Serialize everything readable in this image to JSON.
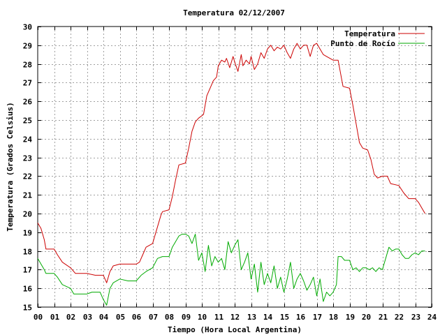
{
  "chart_data": {
    "type": "line",
    "title": "Temperatura 02/12/2007",
    "xlabel": "Tiempo (Hora Local Argentina)",
    "ylabel": "Temperatura (Grados Celsius)",
    "xlim": [
      0,
      24
    ],
    "ylim": [
      15,
      30
    ],
    "xticks": [
      "00",
      "01",
      "02",
      "03",
      "04",
      "05",
      "06",
      "07",
      "08",
      "09",
      "10",
      "11",
      "12",
      "13",
      "14",
      "15",
      "16",
      "17",
      "18",
      "19",
      "20",
      "21",
      "22",
      "23",
      "24"
    ],
    "yticks": [
      15,
      16,
      17,
      18,
      19,
      20,
      21,
      22,
      23,
      24,
      25,
      26,
      27,
      28,
      29,
      30
    ],
    "grid": true,
    "legend_position": "top-right",
    "series": [
      {
        "name": "Temperatura",
        "color": "#cc0000",
        "points": [
          [
            0.0,
            19.5
          ],
          [
            0.2,
            19.2
          ],
          [
            0.4,
            18.6
          ],
          [
            0.5,
            18.1
          ],
          [
            1.0,
            18.1
          ],
          [
            1.2,
            17.8
          ],
          [
            1.5,
            17.4
          ],
          [
            2.0,
            17.1
          ],
          [
            2.3,
            16.8
          ],
          [
            3.0,
            16.8
          ],
          [
            3.5,
            16.7
          ],
          [
            4.0,
            16.7
          ],
          [
            4.2,
            16.3
          ],
          [
            4.4,
            16.9
          ],
          [
            4.6,
            17.2
          ],
          [
            5.0,
            17.3
          ],
          [
            5.5,
            17.3
          ],
          [
            6.0,
            17.3
          ],
          [
            6.2,
            17.4
          ],
          [
            6.4,
            17.8
          ],
          [
            6.6,
            18.2
          ],
          [
            7.0,
            18.4
          ],
          [
            7.2,
            19.0
          ],
          [
            7.5,
            19.9
          ],
          [
            7.6,
            20.1
          ],
          [
            8.0,
            20.2
          ],
          [
            8.2,
            20.9
          ],
          [
            8.4,
            21.8
          ],
          [
            8.6,
            22.6
          ],
          [
            9.0,
            22.7
          ],
          [
            9.2,
            23.5
          ],
          [
            9.4,
            24.4
          ],
          [
            9.6,
            24.9
          ],
          [
            9.8,
            25.1
          ],
          [
            10.1,
            25.3
          ],
          [
            10.3,
            26.3
          ],
          [
            10.5,
            26.7
          ],
          [
            10.7,
            27.1
          ],
          [
            10.9,
            27.3
          ],
          [
            11.0,
            27.9
          ],
          [
            11.2,
            28.2
          ],
          [
            11.4,
            28.1
          ],
          [
            11.5,
            28.3
          ],
          [
            11.7,
            27.8
          ],
          [
            11.9,
            28.4
          ],
          [
            12.0,
            28.1
          ],
          [
            12.2,
            27.6
          ],
          [
            12.4,
            28.5
          ],
          [
            12.5,
            27.9
          ],
          [
            12.7,
            28.2
          ],
          [
            12.9,
            28.0
          ],
          [
            13.0,
            28.4
          ],
          [
            13.2,
            27.7
          ],
          [
            13.4,
            28.0
          ],
          [
            13.6,
            28.6
          ],
          [
            13.8,
            28.3
          ],
          [
            14.0,
            28.8
          ],
          [
            14.2,
            29.0
          ],
          [
            14.4,
            28.7
          ],
          [
            14.6,
            28.9
          ],
          [
            14.8,
            28.8
          ],
          [
            15.0,
            29.0
          ],
          [
            15.2,
            28.6
          ],
          [
            15.4,
            28.3
          ],
          [
            15.6,
            28.8
          ],
          [
            15.8,
            29.1
          ],
          [
            16.0,
            28.8
          ],
          [
            16.2,
            29.0
          ],
          [
            16.4,
            29.0
          ],
          [
            16.6,
            28.4
          ],
          [
            16.8,
            29.0
          ],
          [
            17.0,
            29.1
          ],
          [
            17.2,
            28.8
          ],
          [
            17.4,
            28.5
          ],
          [
            17.6,
            28.4
          ],
          [
            17.8,
            28.3
          ],
          [
            18.0,
            28.2
          ],
          [
            18.3,
            28.2
          ],
          [
            18.6,
            26.8
          ],
          [
            19.0,
            26.7
          ],
          [
            19.2,
            25.8
          ],
          [
            19.4,
            24.8
          ],
          [
            19.6,
            23.8
          ],
          [
            19.8,
            23.5
          ],
          [
            20.1,
            23.4
          ],
          [
            20.3,
            22.9
          ],
          [
            20.5,
            22.1
          ],
          [
            20.7,
            21.9
          ],
          [
            21.0,
            22.0
          ],
          [
            21.3,
            22.0
          ],
          [
            21.5,
            21.6
          ],
          [
            22.0,
            21.5
          ],
          [
            22.3,
            21.1
          ],
          [
            22.6,
            20.8
          ],
          [
            23.0,
            20.8
          ],
          [
            23.2,
            20.6
          ],
          [
            23.4,
            20.3
          ],
          [
            23.6,
            20.0
          ]
        ]
      },
      {
        "name": "Punto de Rocío",
        "color": "#00aa00",
        "points": [
          [
            0.0,
            17.6
          ],
          [
            0.2,
            17.3
          ],
          [
            0.4,
            17.0
          ],
          [
            0.5,
            16.8
          ],
          [
            1.0,
            16.8
          ],
          [
            1.2,
            16.6
          ],
          [
            1.5,
            16.2
          ],
          [
            2.0,
            16.0
          ],
          [
            2.2,
            15.7
          ],
          [
            3.0,
            15.7
          ],
          [
            3.3,
            15.8
          ],
          [
            3.8,
            15.8
          ],
          [
            4.0,
            15.4
          ],
          [
            4.2,
            15.1
          ],
          [
            4.4,
            16.0
          ],
          [
            4.6,
            16.3
          ],
          [
            5.0,
            16.5
          ],
          [
            5.5,
            16.4
          ],
          [
            6.0,
            16.4
          ],
          [
            6.3,
            16.7
          ],
          [
            6.6,
            16.9
          ],
          [
            7.0,
            17.1
          ],
          [
            7.3,
            17.6
          ],
          [
            7.6,
            17.7
          ],
          [
            8.0,
            17.7
          ],
          [
            8.2,
            18.2
          ],
          [
            8.4,
            18.5
          ],
          [
            8.6,
            18.8
          ],
          [
            8.8,
            18.9
          ],
          [
            9.0,
            18.9
          ],
          [
            9.2,
            18.8
          ],
          [
            9.4,
            18.4
          ],
          [
            9.6,
            18.9
          ],
          [
            9.8,
            17.5
          ],
          [
            10.0,
            17.9
          ],
          [
            10.2,
            16.9
          ],
          [
            10.4,
            18.3
          ],
          [
            10.6,
            17.2
          ],
          [
            10.8,
            17.7
          ],
          [
            11.0,
            17.4
          ],
          [
            11.2,
            17.6
          ],
          [
            11.4,
            17.0
          ],
          [
            11.6,
            18.5
          ],
          [
            11.8,
            17.9
          ],
          [
            12.0,
            18.3
          ],
          [
            12.2,
            18.6
          ],
          [
            12.4,
            17.0
          ],
          [
            12.6,
            17.4
          ],
          [
            12.8,
            17.9
          ],
          [
            13.0,
            16.5
          ],
          [
            13.2,
            17.3
          ],
          [
            13.4,
            15.8
          ],
          [
            13.6,
            17.4
          ],
          [
            13.8,
            16.2
          ],
          [
            14.0,
            16.8
          ],
          [
            14.2,
            16.3
          ],
          [
            14.4,
            17.2
          ],
          [
            14.6,
            16.0
          ],
          [
            14.8,
            16.6
          ],
          [
            15.0,
            15.8
          ],
          [
            15.2,
            16.5
          ],
          [
            15.4,
            17.4
          ],
          [
            15.6,
            16.0
          ],
          [
            15.8,
            16.5
          ],
          [
            16.0,
            16.8
          ],
          [
            16.2,
            16.4
          ],
          [
            16.4,
            15.9
          ],
          [
            16.6,
            16.2
          ],
          [
            16.8,
            16.6
          ],
          [
            17.0,
            15.6
          ],
          [
            17.2,
            16.5
          ],
          [
            17.4,
            15.3
          ],
          [
            17.6,
            15.8
          ],
          [
            17.8,
            15.6
          ],
          [
            18.0,
            15.8
          ],
          [
            18.2,
            16.2
          ],
          [
            18.3,
            17.7
          ],
          [
            18.5,
            17.7
          ],
          [
            18.7,
            17.5
          ],
          [
            19.0,
            17.5
          ],
          [
            19.2,
            17.0
          ],
          [
            19.4,
            17.1
          ],
          [
            19.6,
            16.9
          ],
          [
            19.8,
            17.1
          ],
          [
            20.0,
            17.1
          ],
          [
            20.2,
            17.0
          ],
          [
            20.4,
            17.1
          ],
          [
            20.6,
            16.9
          ],
          [
            20.8,
            17.1
          ],
          [
            21.0,
            17.0
          ],
          [
            21.2,
            17.6
          ],
          [
            21.4,
            18.2
          ],
          [
            21.6,
            18.0
          ],
          [
            21.8,
            18.1
          ],
          [
            22.0,
            18.1
          ],
          [
            22.2,
            17.8
          ],
          [
            22.4,
            17.6
          ],
          [
            22.6,
            17.6
          ],
          [
            22.8,
            17.8
          ],
          [
            23.0,
            17.9
          ],
          [
            23.2,
            17.8
          ],
          [
            23.4,
            18.0
          ],
          [
            23.6,
            18.0
          ]
        ]
      }
    ]
  }
}
